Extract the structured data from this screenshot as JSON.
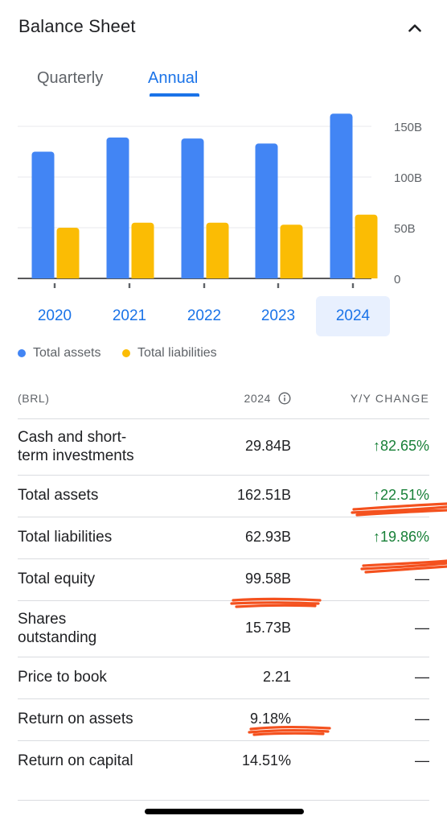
{
  "header": {
    "title": "Balance Sheet",
    "collapse_icon": "chevron-up-icon"
  },
  "tabs": [
    {
      "label": "Quarterly",
      "selected": false
    },
    {
      "label": "Annual",
      "selected": true
    }
  ],
  "chart_data": {
    "type": "bar",
    "categories": [
      "2020",
      "2021",
      "2022",
      "2023",
      "2024"
    ],
    "series": [
      {
        "name": "Total assets",
        "color": "#4285f4",
        "values": [
          125,
          139,
          138,
          133,
          162.51
        ]
      },
      {
        "name": "Total liabilities",
        "color": "#fbbc04",
        "values": [
          50,
          55,
          55,
          53,
          62.93
        ]
      }
    ],
    "yticks": [
      "150B",
      "100B",
      "50B",
      "0"
    ],
    "ytick_values": [
      150,
      100,
      50,
      0
    ],
    "ylim": [
      0,
      162.51
    ],
    "y_axis_position": "right",
    "grid": true,
    "selected_category": "2024",
    "legend_position": "bottom-left"
  },
  "legend": [
    {
      "label": "Total assets",
      "color": "#4285f4"
    },
    {
      "label": "Total liabilities",
      "color": "#fbbc04"
    }
  ],
  "table": {
    "headers": {
      "currency": "(BRL)",
      "year": "2024",
      "change": "Y/Y CHANGE"
    },
    "rows": [
      {
        "label_line1": "Cash and short-",
        "label_line2": "term investments",
        "value": "29.84B",
        "change": "↑82.65%"
      },
      {
        "label": "Total assets",
        "value": "162.51B",
        "change": "↑22.51%"
      },
      {
        "label": "Total liabilities",
        "value": "62.93B",
        "change": "↑19.86%"
      },
      {
        "label": "Total equity",
        "value": "99.58B",
        "change": "—"
      },
      {
        "label_line1": "Shares",
        "label_line2": "outstanding",
        "value": "15.73B",
        "change": "—"
      },
      {
        "label": "Price to book",
        "value": "2.21",
        "change": "—"
      },
      {
        "label": "Return on assets",
        "value": "9.18%",
        "change": "—"
      },
      {
        "label": "Return on capital",
        "value": "14.51%",
        "change": "—"
      }
    ]
  },
  "colors": {
    "accent": "#1a73e8",
    "positive": "#188038",
    "annotation": "#f4511e"
  }
}
